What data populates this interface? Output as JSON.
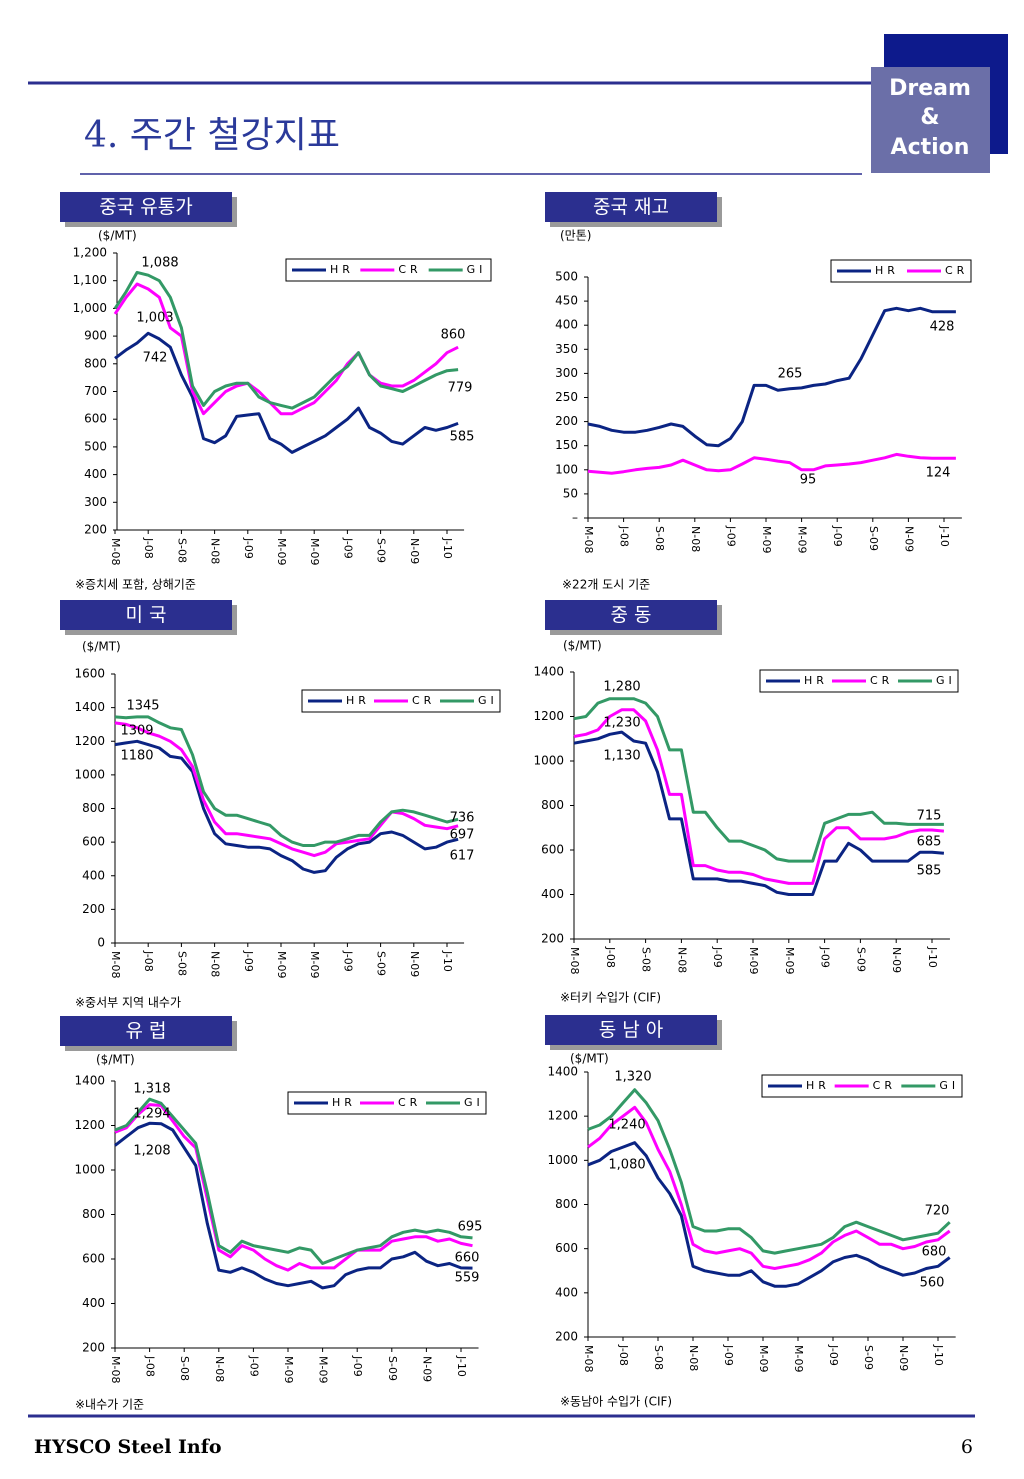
{
  "header": {
    "title": "4. 주간 철강지표",
    "brand": [
      "Dream",
      "&",
      "Action"
    ]
  },
  "footer": {
    "left": "HYSCO Steel Info",
    "page": "6"
  },
  "chart_data": [
    {
      "type": "line",
      "title": "중국 유통가",
      "unit": "($/MT)",
      "note": "※증치세 포함, 상해기준",
      "categories": [
        "M-08",
        null,
        null,
        "J-08",
        null,
        null,
        "S-08",
        null,
        null,
        "N-08",
        null,
        null,
        "J-09",
        null,
        null,
        "M-09",
        null,
        null,
        "M-09",
        null,
        null,
        "J-09",
        null,
        null,
        "S-09",
        null,
        null,
        "N-09",
        null,
        null,
        "J-10",
        null
      ],
      "ylim": [
        200,
        1200
      ],
      "yticks": [
        200,
        300,
        400,
        500,
        600,
        700,
        800,
        900,
        {
          "value": 1000,
          "label": "1,000"
        },
        {
          "value": 1100,
          "label": "1,100"
        },
        {
          "value": 1200,
          "label": "1,200"
        }
      ],
      "series": [
        {
          "name": "HR",
          "color": "#0b2483",
          "values": [
            820,
            850,
            875,
            910,
            890,
            860,
            760,
            680,
            530,
            515,
            540,
            610,
            615,
            620,
            530,
            510,
            480,
            500,
            520,
            540,
            570,
            600,
            640,
            570,
            550,
            520,
            510,
            540,
            570,
            560,
            570,
            585
          ]
        },
        {
          "name": "CR",
          "color": "#ff00ff",
          "values": [
            980,
            1040,
            1088,
            1070,
            1040,
            930,
            900,
            700,
            620,
            660,
            700,
            720,
            730,
            700,
            660,
            620,
            620,
            640,
            660,
            700,
            740,
            800,
            840,
            760,
            730,
            720,
            720,
            740,
            770,
            800,
            840,
            860
          ]
        },
        {
          "name": "GI",
          "color": "#339966",
          "values": [
            1000,
            1060,
            1130,
            1120,
            1100,
            1040,
            930,
            720,
            650,
            700,
            720,
            730,
            730,
            680,
            660,
            650,
            640,
            660,
            680,
            720,
            760,
            790,
            840,
            760,
            720,
            710,
            700,
            720,
            740,
            760,
            775,
            779
          ]
        }
      ],
      "annotations": [
        "1,088",
        "1,003",
        "742",
        "860",
        "779",
        "585"
      ]
    },
    {
      "type": "line",
      "title": "중국 재고",
      "unit": "(만톤)",
      "note": "※22개 도시 기준",
      "categories": [
        "M-08",
        null,
        null,
        "J-08",
        null,
        null,
        "S-08",
        null,
        null,
        "N-08",
        null,
        null,
        "J-09",
        null,
        null,
        "M-09",
        null,
        null,
        "M-09",
        null,
        null,
        "J-09",
        null,
        null,
        "S-09",
        null,
        null,
        "N-09",
        null,
        null,
        "J-10",
        null
      ],
      "ylim": [
        0,
        500
      ],
      "yticks": [
        {
          "value": 0,
          "label": "–"
        },
        50,
        100,
        150,
        200,
        250,
        300,
        350,
        400,
        450,
        500
      ],
      "series": [
        {
          "name": "HR",
          "color": "#0b2483",
          "values": [
            195,
            190,
            182,
            178,
            178,
            182,
            188,
            195,
            190,
            170,
            152,
            150,
            165,
            200,
            275,
            275,
            265,
            268,
            270,
            275,
            278,
            285,
            290,
            330,
            380,
            430,
            435,
            430,
            435,
            428,
            428,
            428
          ]
        },
        {
          "name": "CR",
          "color": "#ff00ff",
          "values": [
            97,
            95,
            93,
            96,
            100,
            103,
            105,
            110,
            120,
            110,
            100,
            98,
            100,
            112,
            125,
            122,
            118,
            115,
            100,
            100,
            108,
            110,
            112,
            115,
            120,
            125,
            132,
            128,
            125,
            124,
            124,
            124
          ]
        }
      ],
      "annotations": [
        "265",
        "428",
        "95",
        "124"
      ]
    },
    {
      "type": "line",
      "title": "미  국",
      "unit": "($/MT)",
      "note": "※중서부 지역 내수가",
      "categories": [
        "M-08",
        null,
        null,
        "J-08",
        null,
        null,
        "S-08",
        null,
        null,
        "N-08",
        null,
        null,
        "J-09",
        null,
        null,
        "M-09",
        null,
        null,
        "M-09",
        null,
        null,
        "J-09",
        null,
        null,
        "S-09",
        null,
        null,
        "N-09",
        null,
        null,
        "J-10",
        null
      ],
      "ylim": [
        0,
        1600
      ],
      "yticks": [
        0,
        200,
        400,
        600,
        800,
        1000,
        1200,
        1400,
        1600
      ],
      "series": [
        {
          "name": "HR",
          "color": "#0b2483",
          "values": [
            1180,
            1190,
            1200,
            1180,
            1160,
            1110,
            1100,
            1020,
            800,
            650,
            590,
            580,
            570,
            570,
            560,
            520,
            490,
            440,
            420,
            430,
            510,
            560,
            590,
            600,
            650,
            660,
            640,
            600,
            560,
            570,
            600,
            617
          ]
        },
        {
          "name": "CR",
          "color": "#ff00ff",
          "values": [
            1309,
            1300,
            1280,
            1250,
            1230,
            1200,
            1150,
            1050,
            850,
            720,
            650,
            650,
            640,
            630,
            620,
            590,
            560,
            540,
            520,
            540,
            590,
            600,
            610,
            620,
            700,
            780,
            770,
            740,
            700,
            690,
            680,
            697
          ]
        },
        {
          "name": "GI",
          "color": "#339966",
          "values": [
            1345,
            1340,
            1345,
            1345,
            1310,
            1280,
            1270,
            1120,
            900,
            800,
            760,
            760,
            740,
            720,
            700,
            640,
            600,
            580,
            580,
            600,
            600,
            620,
            640,
            640,
            720,
            780,
            790,
            780,
            760,
            740,
            720,
            736
          ]
        }
      ],
      "annotations": [
        "1345",
        "1309",
        "1180",
        "736",
        "697",
        "617"
      ]
    },
    {
      "type": "line",
      "title": "중 동",
      "unit": "($/MT)",
      "note": "※터키 수입가 (CIF)",
      "categories": [
        "M-08",
        null,
        null,
        "J-08",
        null,
        null,
        "S-08",
        null,
        null,
        "N-08",
        null,
        null,
        "J-09",
        null,
        null,
        "M-09",
        null,
        null,
        "M-09",
        null,
        null,
        "J-09",
        null,
        null,
        "S-09",
        null,
        null,
        "N-09",
        null,
        null,
        "J-10",
        null
      ],
      "ylim": [
        200,
        1400
      ],
      "yticks": [
        200,
        400,
        600,
        800,
        1000,
        1200,
        1400
      ],
      "series": [
        {
          "name": "HR",
          "color": "#0b2483",
          "values": [
            1080,
            1090,
            1100,
            1120,
            1130,
            1090,
            1080,
            950,
            740,
            740,
            470,
            470,
            470,
            460,
            460,
            450,
            440,
            410,
            400,
            400,
            400,
            550,
            550,
            630,
            600,
            550,
            550,
            550,
            550,
            590,
            590,
            585
          ]
        },
        {
          "name": "CR",
          "color": "#ff00ff",
          "values": [
            1110,
            1120,
            1140,
            1200,
            1230,
            1230,
            1180,
            1050,
            850,
            850,
            530,
            530,
            510,
            500,
            500,
            490,
            470,
            460,
            450,
            450,
            450,
            650,
            700,
            700,
            650,
            650,
            650,
            660,
            680,
            690,
            690,
            685
          ]
        },
        {
          "name": "GI",
          "color": "#339966",
          "values": [
            1190,
            1200,
            1260,
            1280,
            1280,
            1280,
            1260,
            1200,
            1050,
            1050,
            770,
            770,
            700,
            640,
            640,
            620,
            600,
            560,
            550,
            550,
            550,
            720,
            740,
            760,
            760,
            770,
            720,
            720,
            715,
            715,
            715,
            715
          ]
        }
      ],
      "annotations": [
        "1,280",
        "1,230",
        "1,130",
        "715",
        "685",
        "585"
      ]
    },
    {
      "type": "line",
      "title": "유  럽",
      "unit": "($/MT)",
      "note": "※내수가 기준",
      "categories": [
        "M-08",
        null,
        null,
        "J-08",
        null,
        null,
        "S-08",
        null,
        null,
        "N-08",
        null,
        null,
        "J-09",
        null,
        null,
        "M-09",
        null,
        null,
        "M-09",
        null,
        null,
        "J-09",
        null,
        null,
        "S-09",
        null,
        null,
        "N-09",
        null,
        null,
        "J-10",
        null
      ],
      "ylim": [
        200,
        1400
      ],
      "yticks": [
        200,
        400,
        600,
        800,
        1000,
        1200,
        1400
      ],
      "series": [
        {
          "name": "HR",
          "color": "#0b2483",
          "values": [
            1110,
            1150,
            1190,
            1210,
            1208,
            1180,
            1100,
            1020,
            760,
            550,
            540,
            560,
            540,
            510,
            490,
            480,
            490,
            500,
            470,
            480,
            530,
            550,
            560,
            560,
            600,
            610,
            630,
            590,
            570,
            580,
            560,
            559
          ]
        },
        {
          "name": "CR",
          "color": "#ff00ff",
          "values": [
            1170,
            1190,
            1250,
            1294,
            1290,
            1220,
            1150,
            1100,
            870,
            640,
            610,
            660,
            640,
            600,
            570,
            550,
            580,
            560,
            560,
            560,
            600,
            640,
            640,
            640,
            680,
            690,
            700,
            700,
            680,
            690,
            670,
            660
          ]
        },
        {
          "name": "GI",
          "color": "#339966",
          "values": [
            1180,
            1200,
            1260,
            1318,
            1300,
            1240,
            1180,
            1120,
            900,
            660,
            630,
            680,
            660,
            650,
            640,
            630,
            650,
            640,
            580,
            600,
            620,
            640,
            650,
            660,
            700,
            720,
            730,
            720,
            730,
            720,
            700,
            695
          ]
        }
      ],
      "annotations": [
        "1,318",
        "1,294",
        "1,208",
        "695",
        "660",
        "559"
      ]
    },
    {
      "type": "line",
      "title": "동 남 아",
      "unit": "($/MT)",
      "note": "※동남아 수입가 (CIF)",
      "categories": [
        "M-08",
        null,
        null,
        "J-08",
        null,
        null,
        "S-08",
        null,
        null,
        "N-08",
        null,
        null,
        "J-09",
        null,
        null,
        "M-09",
        null,
        null,
        "M-09",
        null,
        null,
        "J-09",
        null,
        null,
        "S-09",
        null,
        null,
        "N-09",
        null,
        null,
        "J-10",
        null
      ],
      "ylim": [
        200,
        1400
      ],
      "yticks": [
        200,
        400,
        600,
        800,
        1000,
        1200,
        1400
      ],
      "series": [
        {
          "name": "HR",
          "color": "#0b2483",
          "values": [
            980,
            1000,
            1040,
            1060,
            1080,
            1020,
            920,
            850,
            750,
            520,
            500,
            490,
            480,
            480,
            500,
            450,
            430,
            430,
            440,
            470,
            500,
            540,
            560,
            570,
            550,
            520,
            500,
            480,
            490,
            510,
            520,
            560
          ]
        },
        {
          "name": "CR",
          "color": "#ff00ff",
          "values": [
            1060,
            1100,
            1160,
            1200,
            1240,
            1170,
            1050,
            950,
            800,
            620,
            590,
            580,
            590,
            600,
            580,
            520,
            510,
            520,
            530,
            550,
            580,
            630,
            660,
            680,
            650,
            620,
            620,
            600,
            610,
            630,
            640,
            680
          ]
        },
        {
          "name": "GI",
          "color": "#339966",
          "values": [
            1140,
            1160,
            1200,
            1260,
            1320,
            1260,
            1180,
            1050,
            900,
            700,
            680,
            680,
            690,
            690,
            650,
            590,
            580,
            590,
            600,
            610,
            620,
            650,
            700,
            720,
            700,
            680,
            660,
            640,
            650,
            660,
            670,
            720
          ]
        }
      ],
      "annotations": [
        "1,320",
        "1,240",
        "1,080",
        "720",
        "680",
        "560"
      ]
    }
  ]
}
